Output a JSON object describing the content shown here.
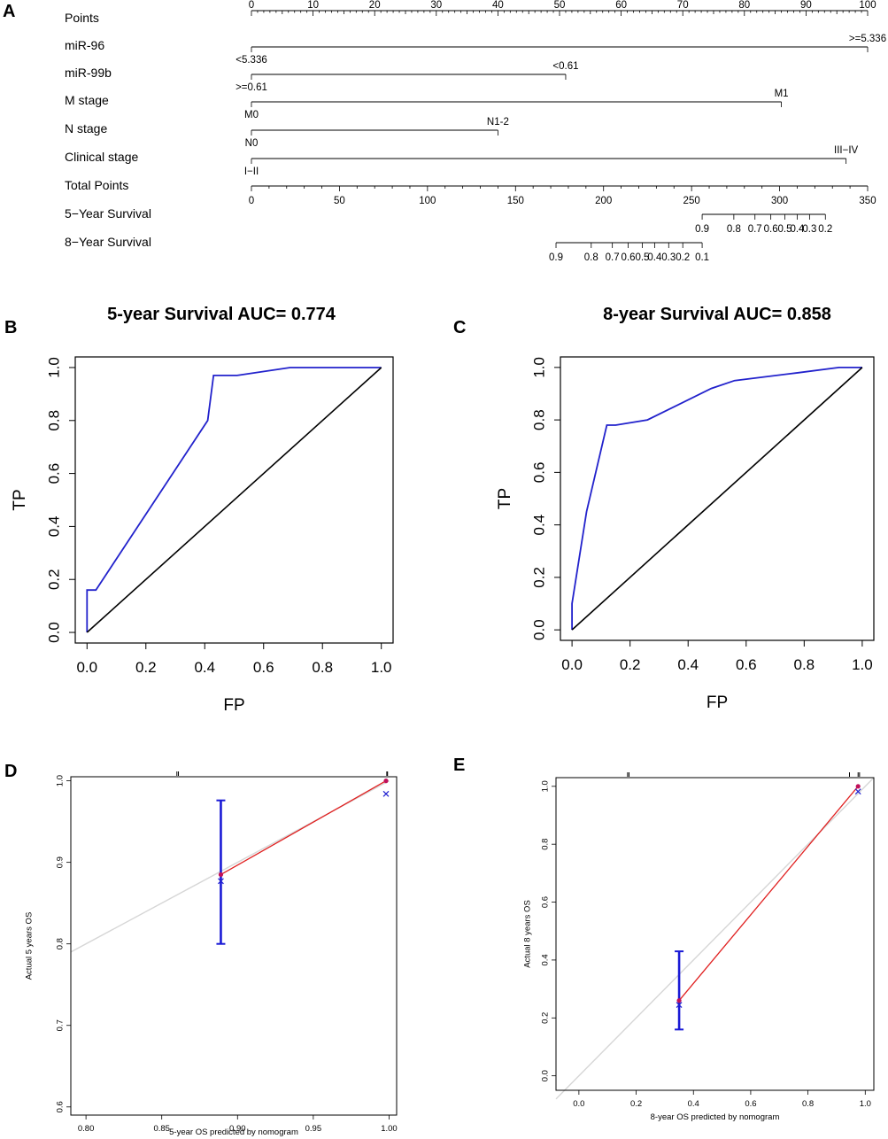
{
  "panels": {
    "a": "A",
    "b": "B",
    "c": "C",
    "d": "D",
    "e": "E"
  },
  "chart_data": [
    {
      "id": "nomogram",
      "type": "nomogram",
      "panel": "A",
      "points_scale": {
        "label": "Points",
        "min": 0,
        "max": 100,
        "major": [
          0,
          10,
          20,
          30,
          40,
          50,
          60,
          70,
          80,
          90,
          100
        ]
      },
      "variables": [
        {
          "label": "miR-96",
          "segment": [
            0,
            100
          ],
          "levels": [
            {
              "text": ">=5.336",
              "points": 100,
              "pos": "above"
            },
            {
              "text": "<5.336",
              "points": 0,
              "pos": "below"
            }
          ]
        },
        {
          "label": "miR-99b",
          "segment": [
            0,
            51
          ],
          "levels": [
            {
              "text": "<0.61",
              "points": 51,
              "pos": "above"
            },
            {
              "text": ">=0.61",
              "points": 0,
              "pos": "below"
            }
          ]
        },
        {
          "label": "M stage",
          "segment": [
            0,
            86
          ],
          "levels": [
            {
              "text": "M1",
              "points": 86,
              "pos": "above"
            },
            {
              "text": "M0",
              "points": 0,
              "pos": "below"
            }
          ]
        },
        {
          "label": "N stage",
          "segment": [
            0,
            40
          ],
          "levels": [
            {
              "text": "N1-2",
              "points": 40,
              "pos": "above"
            },
            {
              "text": "N0",
              "points": 0,
              "pos": "below"
            }
          ]
        },
        {
          "label": "Clinical stage",
          "segment": [
            0,
            96.5
          ],
          "levels": [
            {
              "text": "III−IV",
              "points": 96.5,
              "pos": "above"
            },
            {
              "text": "I−II",
              "points": 0,
              "pos": "below"
            }
          ]
        }
      ],
      "total_points": {
        "label": "Total Points",
        "min": 0,
        "max": 350,
        "ticks": [
          0,
          50,
          100,
          150,
          200,
          250,
          300,
          350
        ]
      },
      "survival_scales": [
        {
          "label": "5−Year Survival",
          "ticks": [
            {
              "t": "0.9",
              "tp": 256
            },
            {
              "t": "0.8",
              "tp": 274
            },
            {
              "t": "0.7",
              "tp": 286
            },
            {
              "t": "0.6",
              "tp": 295
            },
            {
              "t": "0.5",
              "tp": 303
            },
            {
              "t": "0.4",
              "tp": 310
            },
            {
              "t": "0.3",
              "tp": 317
            },
            {
              "t": "0.2",
              "tp": 326
            }
          ]
        },
        {
          "label": "8−Year Survival",
          "ticks": [
            {
              "t": "0.9",
              "tp": 173
            },
            {
              "t": "0.8",
              "tp": 193
            },
            {
              "t": "0.7",
              "tp": 205
            },
            {
              "t": "0.6",
              "tp": 214
            },
            {
              "t": "0.5",
              "tp": 222
            },
            {
              "t": "0.4",
              "tp": 229
            },
            {
              "t": "0.3",
              "tp": 237
            },
            {
              "t": "0.2",
              "tp": 245
            },
            {
              "t": "0.1",
              "tp": 256
            }
          ]
        }
      ]
    },
    {
      "id": "roc5",
      "type": "line",
      "panel": "B",
      "title": "5-year Survival AUC= 0.774",
      "xlabel": "FP",
      "ylabel": "TP",
      "xlim": [
        0,
        1
      ],
      "ylim": [
        0,
        1
      ],
      "xticks": [
        "0.0",
        "0.2",
        "0.4",
        "0.6",
        "0.8",
        "1.0"
      ],
      "yticks": [
        "0.0",
        "0.2",
        "0.4",
        "0.6",
        "0.8",
        "1.0"
      ],
      "series": [
        {
          "name": "ROC",
          "color": "#2222cc",
          "x": [
            0,
            0,
            0.03,
            0.41,
            0.43,
            0.51,
            0.69,
            0.9,
            1.0
          ],
          "y": [
            0,
            0.16,
            0.16,
            0.8,
            0.97,
            0.97,
            1.0,
            1.0,
            1.0
          ]
        },
        {
          "name": "Reference",
          "color": "#000000",
          "x": [
            0,
            1
          ],
          "y": [
            0,
            1
          ]
        }
      ]
    },
    {
      "id": "roc8",
      "type": "line",
      "panel": "C",
      "title": "8-year Survival AUC= 0.858",
      "xlabel": "FP",
      "ylabel": "TP",
      "xlim": [
        0,
        1
      ],
      "ylim": [
        0,
        1
      ],
      "xticks": [
        "0.0",
        "0.2",
        "0.4",
        "0.6",
        "0.8",
        "1.0"
      ],
      "yticks": [
        "0.0",
        "0.2",
        "0.4",
        "0.6",
        "0.8",
        "1.0"
      ],
      "series": [
        {
          "name": "ROC",
          "color": "#2222cc",
          "x": [
            0,
            0,
            0.05,
            0.12,
            0.15,
            0.26,
            0.48,
            0.56,
            0.78,
            0.92,
            1.0
          ],
          "y": [
            0,
            0.1,
            0.45,
            0.78,
            0.78,
            0.8,
            0.92,
            0.95,
            0.98,
            1.0,
            1.0
          ]
        },
        {
          "name": "Reference",
          "color": "#000000",
          "x": [
            0,
            1
          ],
          "y": [
            0,
            1
          ]
        }
      ]
    },
    {
      "id": "cal5",
      "type": "scatter",
      "panel": "D",
      "xlabel": "5-year OS predicted by nomogram",
      "ylabel": "Actual 5 years OS",
      "xlim": [
        0.79,
        1.005
      ],
      "ylim": [
        0.59,
        1.005
      ],
      "xticks": [
        "0.80",
        "0.85",
        "0.90",
        "0.95",
        "1.00"
      ],
      "yticks": [
        "0.6",
        "0.7",
        "0.8",
        "0.9",
        "1.0"
      ],
      "ideal_line": [
        [
          0.79,
          0.79
        ],
        [
          1.0,
          1.0
        ]
      ],
      "calibration": {
        "x": [
          0.889,
          0.998
        ],
        "y": [
          0.885,
          1.0
        ]
      },
      "corrected": {
        "x": [
          0.889,
          0.998
        ],
        "y": [
          0.877,
          0.984
        ]
      },
      "error_bars": [
        {
          "x": 0.889,
          "lo": 0.8,
          "hi": 0.976
        }
      ],
      "rug": [
        0.86,
        0.861,
        0.9985,
        0.999
      ]
    },
    {
      "id": "cal8",
      "type": "scatter",
      "panel": "E",
      "xlabel": "8-year OS predicted by nomogram",
      "ylabel": "Actual 8 years OS",
      "xlim": [
        -0.08,
        1.03
      ],
      "ylim": [
        -0.05,
        1.03
      ],
      "xticks": [
        "0.0",
        "0.2",
        "0.4",
        "0.6",
        "0.8",
        "1.0"
      ],
      "yticks": [
        "0.0",
        "0.2",
        "0.4",
        "0.6",
        "0.8",
        "1.0"
      ],
      "ideal_line": [
        [
          -0.08,
          -0.08
        ],
        [
          1.03,
          1.03
        ]
      ],
      "calibration": {
        "x": [
          0.35,
          0.975
        ],
        "y": [
          0.26,
          1.0
        ]
      },
      "corrected": {
        "x": [
          0.35,
          0.975
        ],
        "y": [
          0.245,
          0.982
        ]
      },
      "error_bars": [
        {
          "x": 0.35,
          "lo": 0.16,
          "hi": 0.43
        }
      ],
      "rug": [
        0.17,
        0.175,
        0.945,
        0.975,
        0.98
      ]
    }
  ]
}
